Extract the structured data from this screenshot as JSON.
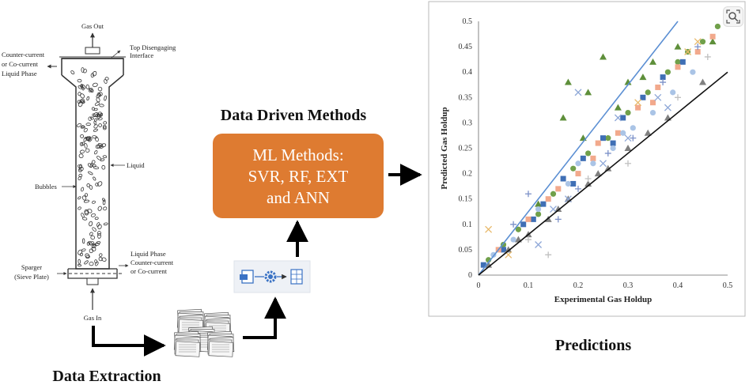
{
  "reactor": {
    "gas_out": "Gas Out",
    "top_interface": [
      "Top Disengaging",
      "Interface"
    ],
    "liquid_top": [
      "Counter-current",
      "or Co-current",
      "Liquid Phase"
    ],
    "liquid": "Liquid",
    "bubbles": "Bubbles",
    "liquid_bottom": [
      "Liquid Phase",
      "Counter-current",
      "or Co-current"
    ],
    "sparger": [
      "Sparger",
      "(Sieve Plate)"
    ],
    "gas_in": "Gas In"
  },
  "labels": {
    "data_extraction": "Data Extraction",
    "data_driven": "Data Driven Methods",
    "ml_methods": [
      "ML Methods:",
      "SVR, RF, EXT",
      "and ANN"
    ],
    "predictions": "Predictions"
  },
  "colors": {
    "ml_box": "#de7b31",
    "arrow": "#000000",
    "parity_line": "#5b8fd3",
    "lower_line": "#111111"
  },
  "icons": [
    "document-icon",
    "gear-icon",
    "table-icon",
    "paper-stack-icon",
    "image-action-icon"
  ],
  "chart_data": {
    "type": "scatter",
    "xlabel": "Experimental Gas Holdup",
    "ylabel": "Predicted Gas Holdup",
    "xlim": [
      0,
      0.5
    ],
    "ylim": [
      0,
      0.5
    ],
    "xticks": [
      "0",
      "0.1",
      "0.2",
      "0.3",
      "0.4",
      "0.5"
    ],
    "yticks": [
      "0",
      "0.05",
      "0.1",
      "0.15",
      "0.2",
      "0.25",
      "0.3",
      "0.35",
      "0.4",
      "0.45",
      "0.5"
    ],
    "grid": false,
    "legend": "none",
    "lines": [
      {
        "color": "#5b8fd3",
        "x": [
          0,
          0.4
        ],
        "y": [
          0,
          0.5
        ]
      },
      {
        "color": "#111111",
        "x": [
          0,
          0.5
        ],
        "y": [
          0,
          0.4
        ]
      }
    ],
    "series": [
      {
        "marker": "circle",
        "color": "#70a04a",
        "points": [
          [
            0.02,
            0.03
          ],
          [
            0.08,
            0.09
          ],
          [
            0.15,
            0.16
          ],
          [
            0.22,
            0.24
          ],
          [
            0.3,
            0.32
          ],
          [
            0.38,
            0.4
          ],
          [
            0.45,
            0.46
          ],
          [
            0.48,
            0.49
          ],
          [
            0.26,
            0.27
          ],
          [
            0.12,
            0.12
          ],
          [
            0.34,
            0.36
          ],
          [
            0.42,
            0.44
          ],
          [
            0.05,
            0.06
          ],
          [
            0.19,
            0.21
          ],
          [
            0.4,
            0.42
          ]
        ]
      },
      {
        "marker": "triangle",
        "color": "#5e8f3a",
        "points": [
          [
            0.25,
            0.43
          ],
          [
            0.17,
            0.31
          ],
          [
            0.18,
            0.38
          ],
          [
            0.3,
            0.38
          ],
          [
            0.22,
            0.36
          ],
          [
            0.4,
            0.45
          ],
          [
            0.35,
            0.42
          ],
          [
            0.28,
            0.33
          ],
          [
            0.33,
            0.39
          ],
          [
            0.47,
            0.46
          ],
          [
            0.21,
            0.27
          ],
          [
            0.12,
            0.14
          ]
        ]
      },
      {
        "marker": "triangle",
        "color": "#808080",
        "points": [
          [
            0.02,
            0.02
          ],
          [
            0.06,
            0.05
          ],
          [
            0.1,
            0.08
          ],
          [
            0.14,
            0.11
          ],
          [
            0.18,
            0.15
          ],
          [
            0.22,
            0.18
          ],
          [
            0.26,
            0.21
          ],
          [
            0.3,
            0.25
          ],
          [
            0.34,
            0.28
          ],
          [
            0.38,
            0.31
          ],
          [
            0.45,
            0.38
          ],
          [
            0.08,
            0.07
          ],
          [
            0.16,
            0.13
          ],
          [
            0.24,
            0.2
          ]
        ]
      },
      {
        "marker": "square",
        "color": "#3f6fb5",
        "points": [
          [
            0.01,
            0.02
          ],
          [
            0.05,
            0.05
          ],
          [
            0.09,
            0.1
          ],
          [
            0.13,
            0.14
          ],
          [
            0.17,
            0.19
          ],
          [
            0.21,
            0.23
          ],
          [
            0.25,
            0.27
          ],
          [
            0.29,
            0.31
          ],
          [
            0.33,
            0.35
          ],
          [
            0.37,
            0.39
          ],
          [
            0.41,
            0.42
          ],
          [
            0.11,
            0.11
          ],
          [
            0.19,
            0.18
          ],
          [
            0.27,
            0.26
          ]
        ]
      },
      {
        "marker": "square",
        "color": "#f2a98c",
        "points": [
          [
            0.04,
            0.05
          ],
          [
            0.1,
            0.11
          ],
          [
            0.16,
            0.17
          ],
          [
            0.2,
            0.2
          ],
          [
            0.24,
            0.26
          ],
          [
            0.28,
            0.28
          ],
          [
            0.32,
            0.33
          ],
          [
            0.36,
            0.37
          ],
          [
            0.4,
            0.41
          ],
          [
            0.44,
            0.44
          ],
          [
            0.47,
            0.47
          ],
          [
            0.14,
            0.15
          ],
          [
            0.23,
            0.23
          ],
          [
            0.35,
            0.34
          ]
        ]
      },
      {
        "marker": "circle",
        "color": "#aac4e6",
        "points": [
          [
            0.03,
            0.04
          ],
          [
            0.07,
            0.07
          ],
          [
            0.12,
            0.13
          ],
          [
            0.18,
            0.18
          ],
          [
            0.23,
            0.22
          ],
          [
            0.27,
            0.25
          ],
          [
            0.31,
            0.29
          ],
          [
            0.35,
            0.32
          ],
          [
            0.39,
            0.36
          ],
          [
            0.43,
            0.4
          ],
          [
            0.2,
            0.22
          ],
          [
            0.29,
            0.28
          ]
        ]
      },
      {
        "marker": "cross",
        "color": "#8fa8d8",
        "points": [
          [
            0.2,
            0.36
          ],
          [
            0.3,
            0.27
          ],
          [
            0.15,
            0.13
          ],
          [
            0.38,
            0.33
          ],
          [
            0.18,
            0.15
          ],
          [
            0.25,
            0.22
          ],
          [
            0.12,
            0.06
          ],
          [
            0.28,
            0.31
          ],
          [
            0.36,
            0.35
          ]
        ]
      },
      {
        "marker": "cross",
        "color": "#e8b96a",
        "points": [
          [
            0.02,
            0.09
          ],
          [
            0.42,
            0.44
          ],
          [
            0.06,
            0.04
          ],
          [
            0.44,
            0.46
          ],
          [
            0.32,
            0.34
          ]
        ]
      },
      {
        "marker": "plus",
        "color": "#7b90c8",
        "points": [
          [
            0.1,
            0.16
          ],
          [
            0.16,
            0.11
          ],
          [
            0.26,
            0.24
          ],
          [
            0.31,
            0.27
          ],
          [
            0.37,
            0.38
          ],
          [
            0.44,
            0.45
          ],
          [
            0.2,
            0.17
          ],
          [
            0.07,
            0.1
          ]
        ]
      },
      {
        "marker": "plus",
        "color": "#c0c0c0",
        "points": [
          [
            0.14,
            0.04
          ],
          [
            0.3,
            0.22
          ],
          [
            0.22,
            0.19
          ],
          [
            0.4,
            0.35
          ],
          [
            0.46,
            0.43
          ],
          [
            0.1,
            0.07
          ]
        ]
      }
    ]
  }
}
